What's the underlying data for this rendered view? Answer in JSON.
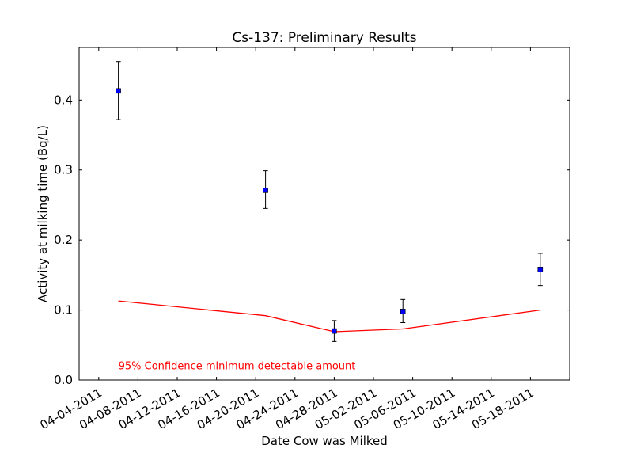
{
  "chart_data": {
    "type": "scatter",
    "title": "Cs-137: Preliminary Results",
    "xlabel": "Date Cow was Milked",
    "ylabel": "Activity at milking time (Bq/L)",
    "xlim": [
      "2011-04-02",
      "2011-05-22"
    ],
    "ylim": [
      0,
      0.475
    ],
    "grid": false,
    "x_ticks": [
      "2011-04-04",
      "2011-04-08",
      "2011-04-12",
      "2011-04-16",
      "2011-04-20",
      "2011-04-24",
      "2011-04-28",
      "2011-05-02",
      "2011-05-06",
      "2011-05-10",
      "2011-05-14",
      "2011-05-18"
    ],
    "x_tick_labels": [
      "04-04-2011",
      "04-08-2011",
      "04-12-2011",
      "04-16-2011",
      "04-20-2011",
      "04-24-2011",
      "04-28-2011",
      "05-02-2011",
      "05-06-2011",
      "05-10-2011",
      "05-14-2011",
      "05-18-2011"
    ],
    "y_ticks": [
      0.0,
      0.1,
      0.2,
      0.3,
      0.4
    ],
    "y_tick_labels": [
      "0.0",
      "0.1",
      "0.2",
      "0.3",
      "0.4"
    ],
    "series": [
      {
        "marker": "square",
        "color": "#0000ff",
        "points": [
          {
            "x": "2011-04-06",
            "y": 0.413,
            "err_low": 0.372,
            "err_high": 0.455
          },
          {
            "x": "2011-04-21",
            "y": 0.271,
            "err_low": 0.245,
            "err_high": 0.299
          },
          {
            "x": "2011-04-28",
            "y": 0.07,
            "err_low": 0.055,
            "err_high": 0.085
          },
          {
            "x": "2011-05-05",
            "y": 0.098,
            "err_low": 0.082,
            "err_high": 0.115
          },
          {
            "x": "2011-05-19",
            "y": 0.158,
            "err_low": 0.135,
            "err_high": 0.181
          }
        ]
      },
      {
        "type": "line",
        "color": "#ff0000",
        "points": [
          {
            "x": "2011-04-06",
            "y": 0.113
          },
          {
            "x": "2011-04-21",
            "y": 0.092
          },
          {
            "x": "2011-04-28",
            "y": 0.069
          },
          {
            "x": "2011-05-05",
            "y": 0.073
          },
          {
            "x": "2011-05-19",
            "y": 0.1
          }
        ]
      }
    ],
    "annotation": {
      "text": "95% Confidence minimum detectable amount",
      "color": "#ff0000",
      "x": "2011-04-06",
      "y": 0.015
    }
  }
}
